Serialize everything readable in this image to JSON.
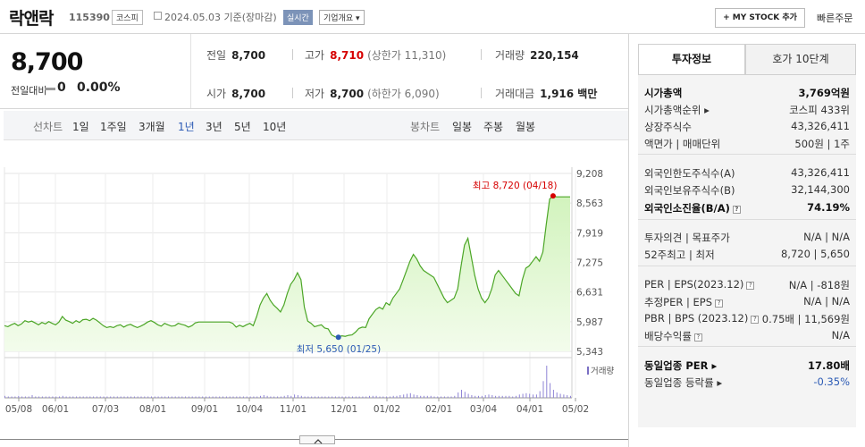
{
  "header": {
    "name": "락앤락",
    "code": "115390",
    "market": "코스피",
    "date": "2024.05.03  기준(장마감)",
    "realtime": "실시간",
    "overview": "기업개요 ▾",
    "mystock": "+ MY STOCK 추가",
    "quick_order": "빠른주문"
  },
  "price": {
    "current": "8,700",
    "change_label": "전일대비",
    "change": "0",
    "change_pct": "0.00%"
  },
  "stats": {
    "prev_label": "전일",
    "prev": "8,700",
    "high_label": "고가",
    "high": "8,710",
    "upper_limit": "(상한가 11,310)",
    "volume_label": "거래량",
    "volume": "220,154",
    "open_label": "시가",
    "open": "8,700",
    "low_label": "저가",
    "low": "8,700",
    "lower_limit": "(하한가 6,090)",
    "amount_label": "거래대금",
    "amount": "1,916 백만"
  },
  "tabs": {
    "line_label": "선차트",
    "periods": [
      "1일",
      "1주일",
      "3개월",
      "1년",
      "3년",
      "5년",
      "10년"
    ],
    "selected": "1년",
    "candle_label": "봉차트",
    "candles": [
      "일봉",
      "주봉",
      "월봉"
    ]
  },
  "chart_data": {
    "type": "area",
    "title": "",
    "ylim": [
      5343,
      9208
    ],
    "yticks": [
      "9,208",
      "8,563",
      "7,919",
      "7,275",
      "6,631",
      "5,987",
      "5,343"
    ],
    "xticks": [
      "05/08",
      "06/01",
      "07/03",
      "08/01",
      "09/01",
      "10/04",
      "11/01",
      "12/01",
      "01/02",
      "02/01",
      "03/04",
      "04/01",
      "05/02"
    ],
    "high_annotation": "최고 8,720 (04/18)",
    "low_annotation": "최저 5,650 (01/25)",
    "volume_label": "거래량",
    "series": [
      {
        "values": [
          5900,
          5880,
          5920,
          5950,
          5900,
          5940,
          6010,
          5980,
          6000,
          5960,
          5920,
          5970,
          5940,
          5990,
          5950,
          5920,
          5980,
          6100,
          6020,
          5990,
          5950,
          6010,
          5970,
          6030,
          6040,
          6010,
          6060,
          6020,
          5960,
          5900,
          5860,
          5880,
          5860,
          5900,
          5920,
          5870,
          5910,
          5930,
          5890,
          5860,
          5890,
          5930,
          5980,
          6010,
          5970,
          5920,
          5890,
          5950,
          5920,
          5890,
          5900,
          5950,
          5930,
          5910,
          5870,
          5900,
          5960,
          5980,
          5980,
          5980,
          5980,
          5980,
          5980,
          5980,
          5980,
          5980,
          5980,
          5950,
          5870,
          5910,
          5880,
          5920,
          5950,
          5900,
          6100,
          6350,
          6500,
          6600,
          6450,
          6350,
          6280,
          6200,
          6350,
          6600,
          6800,
          6900,
          7050,
          6900,
          6300,
          6000,
          5950,
          5880,
          5900,
          5920,
          5850,
          5830,
          5700,
          5660,
          5650,
          5680,
          5670,
          5690,
          5700,
          5760,
          5840,
          5870,
          5860,
          6050,
          6150,
          6250,
          6300,
          6260,
          6400,
          6350,
          6500,
          6600,
          6700,
          6900,
          7100,
          7300,
          7450,
          7350,
          7200,
          7100,
          7050,
          7000,
          6950,
          6800,
          6650,
          6500,
          6400,
          6450,
          6500,
          6700,
          7200,
          7650,
          7800,
          7400,
          7000,
          6700,
          6500,
          6400,
          6500,
          6700,
          7000,
          7100,
          7000,
          6900,
          6800,
          6700,
          6600,
          6550,
          6900,
          7150,
          7200,
          7300,
          7400,
          7300,
          7500,
          8100,
          8650,
          8720,
          8700,
          8700,
          8700,
          8700,
          8700
        ]
      }
    ],
    "volume": [
      3,
      2,
      2,
      2,
      3,
      2,
      2,
      2,
      4,
      2,
      2,
      2,
      2,
      2,
      2,
      2,
      2,
      3,
      2,
      2,
      2,
      2,
      2,
      2,
      2,
      2,
      2,
      2,
      2,
      2,
      2,
      2,
      2,
      2,
      2,
      2,
      2,
      2,
      2,
      2,
      2,
      2,
      2,
      2,
      2,
      2,
      2,
      2,
      2,
      2,
      2,
      2,
      2,
      2,
      2,
      2,
      2,
      2,
      2,
      2,
      2,
      2,
      2,
      2,
      2,
      2,
      2,
      2,
      2,
      2,
      2,
      2,
      2,
      2,
      2,
      3,
      4,
      3,
      2,
      2,
      2,
      2,
      3,
      4,
      3,
      5,
      4,
      3,
      2,
      2,
      2,
      2,
      2,
      2,
      2,
      2,
      2,
      2,
      2,
      2,
      2,
      2,
      2,
      2,
      2,
      2,
      2,
      3,
      3,
      3,
      2,
      2,
      2,
      2,
      3,
      3,
      4,
      5,
      6,
      7,
      5,
      4,
      3,
      3,
      3,
      3,
      2,
      2,
      2,
      2,
      2,
      2,
      3,
      8,
      12,
      9,
      6,
      4,
      3,
      3,
      3,
      4,
      5,
      4,
      3,
      3,
      3,
      3,
      3,
      2,
      3,
      5,
      6,
      7,
      6,
      5,
      5,
      10,
      25,
      48,
      22,
      12,
      8,
      6,
      5,
      4,
      3
    ]
  },
  "panel": {
    "tab_active": "투자정보",
    "tab_other": "호가 10단계",
    "rows": [
      {
        "k": "시가총액",
        "v": "3,769억원",
        "bold": true
      },
      {
        "k": "시가총액순위 ▸",
        "v": "코스피 433위"
      },
      {
        "k": "상장주식수",
        "v": "43,326,411"
      },
      {
        "k": "액면가 | 매매단위",
        "v": "500원 | 1주"
      },
      {
        "k": "외국인한도주식수(A)",
        "v": "43,326,411"
      },
      {
        "k": "외국인보유주식수(B)",
        "v": "32,144,300"
      },
      {
        "k": "외국인소진율(B/A)",
        "v": "74.19%",
        "bold": true
      },
      {
        "k": "투자의견 | 목표주가",
        "v": "N/A | N/A"
      },
      {
        "k": "52주최고 | 최저",
        "v": "8,720 | 5,650"
      },
      {
        "k": "PER | EPS(2023.12)",
        "v": "N/A | -818원"
      },
      {
        "k": "추정PER | EPS",
        "v": "N/A | N/A"
      },
      {
        "k": "PBR | BPS (2023.12)",
        "v": "0.75배 | 11,569원"
      },
      {
        "k": "배당수익률",
        "v": "N/A"
      },
      {
        "k": "동일업종 PER ▸",
        "v": "17.80배",
        "bold": true
      },
      {
        "k": "동일업종 등락률 ▸",
        "v": "-0.35%",
        "blue": true
      }
    ]
  },
  "colors": {
    "up": "#d60000",
    "down": "#2c5bb5",
    "line": "#4ca627",
    "area": "#e7f8d9"
  }
}
